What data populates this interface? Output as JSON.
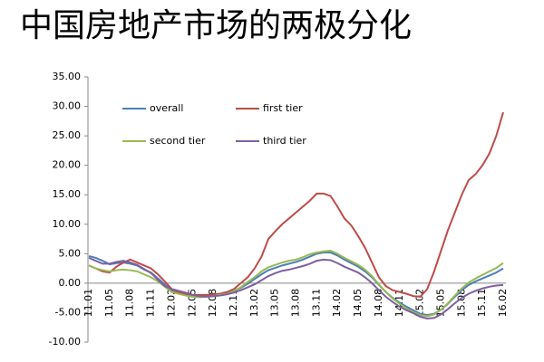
{
  "chart_data": {
    "type": "line",
    "title": "中国房地产市场的两极分化",
    "categories": [
      "11.01",
      null,
      null,
      "11.05",
      null,
      null,
      "11.08",
      null,
      null,
      "11.11",
      null,
      null,
      "12.02",
      null,
      null,
      "12.05",
      null,
      null,
      "12.08",
      null,
      null,
      "12.11",
      null,
      null,
      "13.02",
      null,
      null,
      "13.05",
      null,
      null,
      "13.08",
      null,
      null,
      "13.11",
      null,
      null,
      "14.02",
      null,
      null,
      "14.05",
      null,
      null,
      "14.08",
      null,
      null,
      "14.11",
      null,
      null,
      "15.02",
      null,
      null,
      "15.05",
      null,
      null,
      "15.08",
      null,
      null,
      "15.11",
      null,
      null,
      "16.02"
    ],
    "series": [
      {
        "name": "overall",
        "color": "#4a7ebb",
        "values": [
          4.6,
          4.3,
          3.8,
          3.2,
          3.4,
          3.5,
          3.3,
          3.0,
          2.3,
          1.8,
          0.8,
          -0.2,
          -1.3,
          -1.6,
          -1.9,
          -2.1,
          -2.2,
          -2.1,
          -2.0,
          -1.9,
          -1.7,
          -1.3,
          -0.8,
          -0.1,
          0.7,
          1.5,
          2.2,
          2.6,
          3.0,
          3.3,
          3.6,
          4.0,
          4.5,
          5.0,
          5.2,
          5.2,
          4.7,
          4.0,
          3.4,
          2.8,
          2.0,
          1.0,
          -0.3,
          -1.5,
          -2.5,
          -3.3,
          -4.0,
          -4.6,
          -5.2,
          -5.4,
          -5.2,
          -4.5,
          -3.5,
          -2.3,
          -1.2,
          -0.3,
          0.3,
          0.8,
          1.3,
          1.8,
          2.5
        ]
      },
      {
        "name": "first tier",
        "color": "#be4b48",
        "values": [
          3.0,
          2.5,
          2.0,
          1.8,
          2.8,
          3.5,
          4.0,
          3.5,
          3.0,
          2.5,
          1.5,
          0.3,
          -1.0,
          -1.6,
          -1.9,
          -2.0,
          -2.0,
          -2.0,
          -1.9,
          -1.8,
          -1.5,
          -1.0,
          0.0,
          1.0,
          2.5,
          4.5,
          7.5,
          8.8,
          10.0,
          11.0,
          12.0,
          13.0,
          14.0,
          15.2,
          15.2,
          14.8,
          13.0,
          11.0,
          9.8,
          8.0,
          6.0,
          3.5,
          1.0,
          -0.5,
          -1.2,
          -1.5,
          -1.8,
          -2.2,
          -2.3,
          -1.0,
          2.0,
          5.5,
          9.0,
          12.0,
          15.0,
          17.5,
          18.5,
          20.0,
          22.0,
          25.0,
          29.0
        ]
      },
      {
        "name": "second tier",
        "color": "#98b954",
        "values": [
          3.0,
          2.5,
          2.2,
          2.0,
          2.2,
          2.3,
          2.2,
          2.0,
          1.5,
          1.0,
          0.3,
          -0.6,
          -1.5,
          -1.8,
          -2.1,
          -2.3,
          -2.4,
          -2.3,
          -2.2,
          -2.0,
          -1.8,
          -1.3,
          -0.7,
          0.2,
          1.0,
          2.0,
          2.7,
          3.1,
          3.5,
          3.8,
          4.0,
          4.4,
          4.9,
          5.2,
          5.4,
          5.5,
          5.0,
          4.3,
          3.7,
          3.1,
          2.3,
          1.2,
          -0.2,
          -1.5,
          -2.6,
          -3.5,
          -4.3,
          -4.9,
          -5.4,
          -5.6,
          -5.3,
          -4.5,
          -3.4,
          -2.1,
          -0.9,
          0.1,
          0.8,
          1.4,
          2.0,
          2.6,
          3.4
        ]
      },
      {
        "name": "third tier",
        "color": "#7d60a0",
        "values": [
          4.3,
          3.8,
          3.3,
          3.3,
          3.6,
          3.8,
          3.5,
          3.1,
          2.4,
          1.7,
          0.6,
          -0.5,
          -1.0,
          -1.3,
          -1.6,
          -2.0,
          -2.2,
          -2.3,
          -2.2,
          -2.1,
          -1.9,
          -1.6,
          -1.2,
          -0.7,
          -0.2,
          0.5,
          1.2,
          1.7,
          2.1,
          2.3,
          2.6,
          2.9,
          3.3,
          3.8,
          4.0,
          3.9,
          3.4,
          2.8,
          2.3,
          1.8,
          1.0,
          0.0,
          -1.2,
          -2.3,
          -3.2,
          -4.0,
          -4.6,
          -5.1,
          -5.7,
          -6.0,
          -5.9,
          -5.3,
          -4.4,
          -3.4,
          -2.5,
          -1.8,
          -1.3,
          -0.9,
          -0.6,
          -0.4,
          -0.3
        ]
      }
    ],
    "ylim": [
      -10,
      35
    ],
    "yticks": [
      {
        "value": -10,
        "label": "-10.00"
      },
      {
        "value": -5,
        "label": "-5.00"
      },
      {
        "value": 0,
        "label": "0.00"
      },
      {
        "value": 5,
        "label": "5.00"
      },
      {
        "value": 10,
        "label": "10.00"
      },
      {
        "value": 15,
        "label": "15.00"
      },
      {
        "value": 20,
        "label": "20.00"
      },
      {
        "value": 25,
        "label": "25.00"
      },
      {
        "value": 30,
        "label": "30.00"
      },
      {
        "value": 35,
        "label": "35.00"
      }
    ],
    "legend": "top"
  }
}
